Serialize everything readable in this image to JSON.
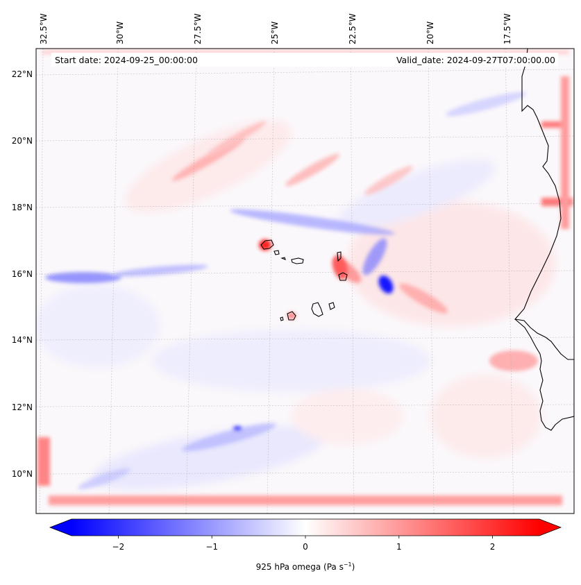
{
  "map": {
    "start_label": "Start date: 2024-09-25_00:00:00",
    "valid_label": "Valid_date: 2024-09-27T07:00:00.00",
    "lon_ticks": [
      "32.5°W",
      "30°W",
      "27.5°W",
      "25°W",
      "22.5°W",
      "20°W",
      "17.5°W"
    ],
    "lat_ticks": [
      "22°N",
      "20°N",
      "18°N",
      "16°N",
      "14°N",
      "12°N",
      "10°N"
    ]
  },
  "chart_data": {
    "type": "heatmap",
    "variable": "925 hPa omega",
    "colorbar": {
      "ticks": [
        "−2",
        "−1",
        "0",
        "1",
        "2"
      ],
      "tick_values": [
        -2,
        -1,
        0,
        1,
        2
      ],
      "range": [
        -2.5,
        2.5
      ],
      "label_prefix": "925 hPa omega (Pa s",
      "label_sup": "−1",
      "label_suffix": ")",
      "cmap": "bwr",
      "extend": "both"
    },
    "lon_range": [
      -33.0,
      -16.0
    ],
    "lat_range": [
      8.8,
      22.8
    ],
    "colors": {
      "negative": "#0000ff",
      "positive": "#ff0000",
      "neutral": "#ffffff",
      "coast": "#000000"
    }
  }
}
